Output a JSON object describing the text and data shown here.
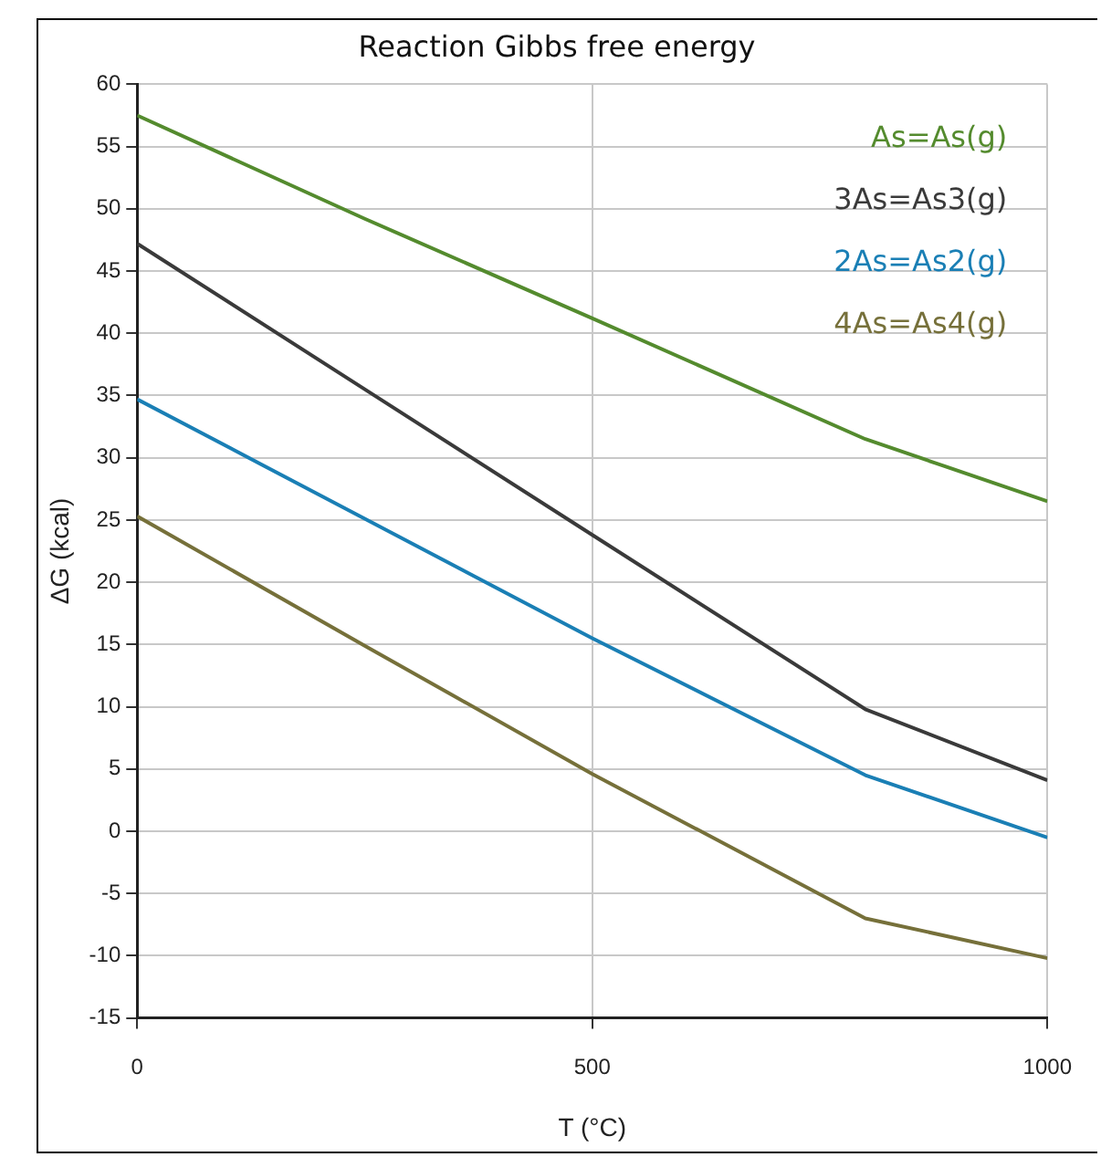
{
  "chart_data": {
    "type": "line",
    "title": "Reaction Gibbs free energy",
    "xlabel": "T (°C)",
    "ylabel": "ΔG (kcal)",
    "x": [
      0,
      250,
      500,
      800,
      1000
    ],
    "series": [
      {
        "name": "As=As(g)",
        "color": "#548b2e",
        "values": [
          57.5,
          49.2,
          41.2,
          31.5,
          26.5
        ]
      },
      {
        "name": "3As=As3(g)",
        "color": "#3a3a3a",
        "values": [
          47.2,
          35.5,
          23.8,
          9.8,
          4.1
        ]
      },
      {
        "name": "2As=As2(g)",
        "color": "#1a7fb5",
        "values": [
          34.7,
          25.1,
          15.5,
          4.5,
          -0.5
        ]
      },
      {
        "name": "4As=As4(g)",
        "color": "#76703a",
        "values": [
          25.3,
          14.9,
          4.6,
          -7,
          -10.2
        ]
      }
    ],
    "xlim": [
      0,
      1000
    ],
    "xticks": [
      0,
      500,
      1000
    ],
    "ylim": [
      -15,
      60
    ],
    "yticks": [
      -15,
      -10,
      -5,
      0,
      5,
      10,
      15,
      20,
      25,
      30,
      35,
      40,
      45,
      50,
      55,
      60
    ],
    "grid": true,
    "legend": "top right",
    "marker": "none",
    "line_style": "solid"
  }
}
